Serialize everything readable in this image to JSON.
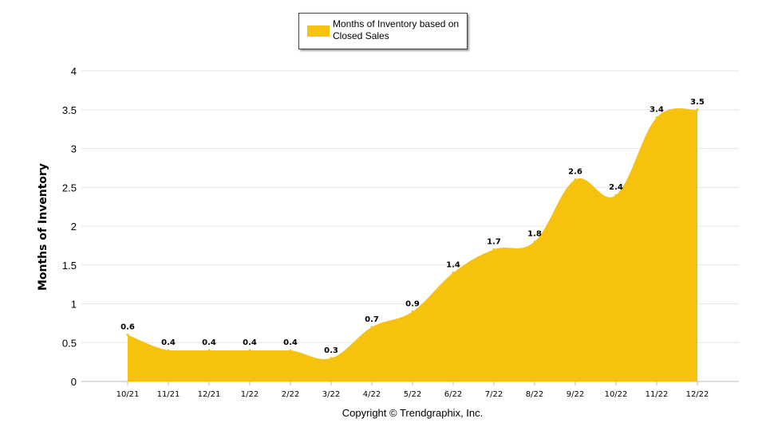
{
  "legend": {
    "label": "Months of Inventory based on Closed Sales"
  },
  "footer": {
    "copyright": "Copyright © Trendgraphix, Inc."
  },
  "colors": {
    "area": "#f6c20e",
    "grid": "#e6e6e6",
    "axis": "#bbbbbb"
  },
  "chart_data": {
    "type": "area",
    "ylabel": "Months of Inventory",
    "xlabel": "",
    "categories": [
      "10/21",
      "11/21",
      "12/21",
      "1/22",
      "2/22",
      "3/22",
      "4/22",
      "5/22",
      "6/22",
      "7/22",
      "8/22",
      "9/22",
      "10/22",
      "11/22",
      "12/22"
    ],
    "series": [
      {
        "name": "Months of Inventory based on Closed Sales",
        "values": [
          0.6,
          0.4,
          0.4,
          0.4,
          0.4,
          0.3,
          0.7,
          0.9,
          1.4,
          1.7,
          1.8,
          2.6,
          2.4,
          3.4,
          3.5
        ]
      }
    ],
    "ylim": [
      0,
      4
    ],
    "yticks": [
      "0",
      "0.5",
      "1",
      "1.5",
      "2",
      "2.5",
      "3",
      "3.5",
      "4"
    ],
    "grid": true,
    "legend_position": "top-center"
  }
}
